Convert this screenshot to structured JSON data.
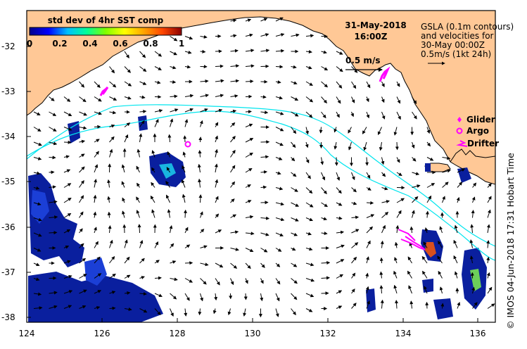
{
  "colorbar": {
    "title": "std dev of 4hr SST comp",
    "ticks": [
      "0",
      "0.2",
      "0.4",
      "0.6",
      "0.8",
      "1"
    ],
    "stops": [
      "#00008b",
      "#0000ff",
      "#00bfff",
      "#00ff99",
      "#7fff00",
      "#ffff00",
      "#ffa500",
      "#ff4500",
      "#8b0000"
    ]
  },
  "header": {
    "date": "31-May-2018",
    "time": "16:00Z"
  },
  "gsla_note": [
    "GSLA (0.1m contours)",
    "and velocities for",
    "30-May 00:00Z",
    "0.5m/s (1kt 24h)"
  ],
  "scale_label": "0.5 m/s",
  "legend": [
    {
      "label": "Glider",
      "symbol": "diamond"
    },
    {
      "label": "Argo",
      "symbol": "circle"
    },
    {
      "label": "Drifter",
      "symbol": "track"
    }
  ],
  "axes": {
    "x_ticks": [
      "124",
      "126",
      "128",
      "130",
      "132",
      "134",
      "136"
    ],
    "y_ticks": [
      "-32",
      "-33",
      "-34",
      "-35",
      "-36",
      "-37",
      "-38"
    ]
  },
  "credit": "© IMOS 04-Jun-2018 17:31 Hobart Time",
  "colors": {
    "land": "#ffc896",
    "contour": "#00e5ee",
    "glider": "#ff00ff",
    "ocean": "#ffffff"
  }
}
